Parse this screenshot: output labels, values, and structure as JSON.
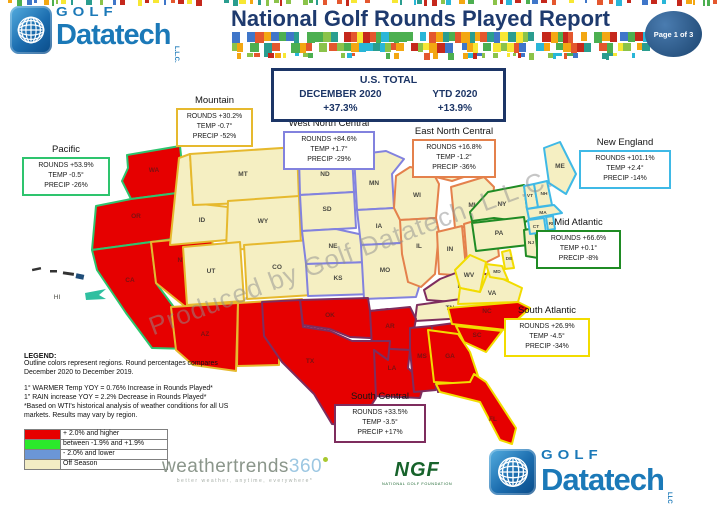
{
  "header": {
    "title": "National Golf Rounds Played Report",
    "page_badge": "Page 1 of 3",
    "logo": {
      "golf": "GOLF",
      "name": "Datatech",
      "suffix": "L.L.C."
    }
  },
  "us_total": {
    "title": "U.S. TOTAL",
    "period1": "DECEMBER 2020",
    "period2": "YTD  2020",
    "value1": "+37.3%",
    "value2": "+13.9%"
  },
  "regions": [
    {
      "id": "pacific",
      "name": "Pacific",
      "rounds": "ROUNDS  +53.9%",
      "temp": "TEMP  -0.5°",
      "precip": "PRECIP -26%",
      "color": "#2ec46e"
    },
    {
      "id": "mountain",
      "name": "Mountain",
      "rounds": "ROUNDS  +30.2%",
      "temp": "TEMP -0.7°",
      "precip": "PRECIP -52%",
      "color": "#e6b92e"
    },
    {
      "id": "west-north-central",
      "name": "West North Central",
      "rounds": "ROUNDS  +84.6%",
      "temp": "TEMP  +1.7°",
      "precip": "PRECIP -29%",
      "color": "#8282de"
    },
    {
      "id": "east-north-central",
      "name": "East North Central",
      "rounds": "ROUNDS  +16.8%",
      "temp": "TEMP -1.2°",
      "precip": "PRECIP -36%",
      "color": "#e4814c"
    },
    {
      "id": "new-england",
      "name": "New England",
      "rounds": "ROUNDS  +101.1%",
      "temp": "TEMP  +2.4°",
      "precip": "PRECIP -14%",
      "color": "#3fb9e6"
    },
    {
      "id": "mid-atlantic",
      "name": "Mid Atlantic",
      "rounds": "ROUNDS +66.6%",
      "temp": "TEMP  +0.1°",
      "precip": "PRECIP -8%",
      "color": "#1f8b24"
    },
    {
      "id": "south-atlantic",
      "name": "South Atlantic",
      "rounds": "ROUNDS  +26.9%",
      "temp": "TEMP  -4.5°",
      "precip": "PRECIP -34%",
      "color": "#f2dc00"
    },
    {
      "id": "south-central",
      "name": "South Central",
      "rounds": "ROUNDS  +33.5%",
      "temp": "TEMP -3.5°",
      "precip": "PRECIP  +17%",
      "color": "#7e2d5e"
    }
  ],
  "map": {
    "watermark": "Produced by Golf Datatech, L.L.C.",
    "hawaii_label": "HI",
    "states": [
      {
        "abbr": "WA",
        "region": "pacific",
        "performance": "up"
      },
      {
        "abbr": "OR",
        "region": "pacific",
        "performance": "up"
      },
      {
        "abbr": "CA",
        "region": "pacific",
        "performance": "up"
      },
      {
        "abbr": "NV",
        "region": "mountain",
        "performance": "up"
      },
      {
        "abbr": "ID",
        "region": "mountain",
        "performance": "off"
      },
      {
        "abbr": "MT",
        "region": "mountain",
        "performance": "off"
      },
      {
        "abbr": "WY",
        "region": "mountain",
        "performance": "off"
      },
      {
        "abbr": "UT",
        "region": "mountain",
        "performance": "off"
      },
      {
        "abbr": "CO",
        "region": "mountain",
        "performance": "off"
      },
      {
        "abbr": "AZ",
        "region": "mountain",
        "performance": "up"
      },
      {
        "abbr": "NM",
        "region": "mountain",
        "performance": "up"
      },
      {
        "abbr": "ND",
        "region": "west-north-central",
        "performance": "off"
      },
      {
        "abbr": "SD",
        "region": "west-north-central",
        "performance": "off"
      },
      {
        "abbr": "NE",
        "region": "west-north-central",
        "performance": "off"
      },
      {
        "abbr": "KS",
        "region": "west-north-central",
        "performance": "off"
      },
      {
        "abbr": "MN",
        "region": "west-north-central",
        "performance": "off"
      },
      {
        "abbr": "IA",
        "region": "west-north-central",
        "performance": "off"
      },
      {
        "abbr": "MO",
        "region": "west-north-central",
        "performance": "off"
      },
      {
        "abbr": "WI",
        "region": "east-north-central",
        "performance": "off"
      },
      {
        "abbr": "MI",
        "region": "east-north-central",
        "performance": "off"
      },
      {
        "abbr": "IL",
        "region": "east-north-central",
        "performance": "off"
      },
      {
        "abbr": "IN",
        "region": "east-north-central",
        "performance": "off"
      },
      {
        "abbr": "OH",
        "region": "east-north-central",
        "performance": "off"
      },
      {
        "abbr": "KY",
        "region": "south-central",
        "performance": "off"
      },
      {
        "abbr": "TN",
        "region": "south-central",
        "performance": "off"
      },
      {
        "abbr": "OK",
        "region": "south-central",
        "performance": "up"
      },
      {
        "abbr": "AR",
        "region": "south-central",
        "performance": "up"
      },
      {
        "abbr": "LA",
        "region": "south-central",
        "performance": "up"
      },
      {
        "abbr": "MS",
        "region": "south-central",
        "performance": "up"
      },
      {
        "abbr": "AL",
        "region": "south-central",
        "performance": "up"
      },
      {
        "abbr": "TX",
        "region": "south-central",
        "performance": "up"
      },
      {
        "abbr": "WV",
        "region": "south-atlantic",
        "performance": "off"
      },
      {
        "abbr": "VA",
        "region": "south-atlantic",
        "performance": "off"
      },
      {
        "abbr": "DE",
        "region": "south-atlantic",
        "performance": "off"
      },
      {
        "abbr": "MD",
        "region": "south-atlantic",
        "performance": "off"
      },
      {
        "abbr": "NC",
        "region": "south-atlantic",
        "performance": "up"
      },
      {
        "abbr": "SC",
        "region": "south-atlantic",
        "performance": "up"
      },
      {
        "abbr": "GA",
        "region": "south-atlantic",
        "performance": "up"
      },
      {
        "abbr": "FL",
        "region": "south-atlantic",
        "performance": "up"
      },
      {
        "abbr": "NY",
        "region": "mid-atlantic",
        "performance": "off"
      },
      {
        "abbr": "PA",
        "region": "mid-atlantic",
        "performance": "off"
      },
      {
        "abbr": "NJ",
        "region": "mid-atlantic",
        "performance": "off"
      },
      {
        "abbr": "ME",
        "region": "new-england",
        "performance": "off"
      },
      {
        "abbr": "VT",
        "region": "new-england",
        "performance": "off"
      },
      {
        "abbr": "NH",
        "region": "new-england",
        "performance": "off"
      },
      {
        "abbr": "MA",
        "region": "new-england",
        "performance": "off"
      },
      {
        "abbr": "CT",
        "region": "new-england",
        "performance": "off"
      },
      {
        "abbr": "RI",
        "region": "new-england",
        "performance": "off"
      }
    ]
  },
  "legend": {
    "heading": "LEGEND:",
    "intro": "Outline colors represent regions. Round percentages compares December 2020 to December 2019.",
    "notes": [
      "1° WARMER Temp YOY  = 0.76% Increase in Rounds Played*",
      "1\" RAIN increase YOY = 2.2% Decrease in Rounds Played*",
      "*Based on WTI's historical analysis of weather conditions for all US markets. Results may vary by region."
    ],
    "items": [
      {
        "color": "#e60000",
        "label": "+ 2.0% and higher"
      },
      {
        "color": "#2be82b",
        "label": "between -1.9% and +1.9%"
      },
      {
        "color": "#6b96d6",
        "label": "- 2.0% and lower"
      },
      {
        "color": "#f2ecc4",
        "label": "Off Season"
      }
    ]
  },
  "footer": {
    "weathertrends": {
      "brand": "weathertrends",
      "number": "360",
      "tagline": "better weather, anytime, everywhere*"
    },
    "ngf": {
      "name": "NGF",
      "caption": "NATIONAL GOLF FOUNDATION"
    },
    "logo": {
      "golf": "GOLF",
      "name": "Datatech",
      "suffix": "LLC"
    }
  },
  "colors": {
    "fill_up": "#e60000",
    "fill_off": "#f5efc2",
    "label_up": "#7c1111",
    "label_off": "#4a4a42"
  }
}
